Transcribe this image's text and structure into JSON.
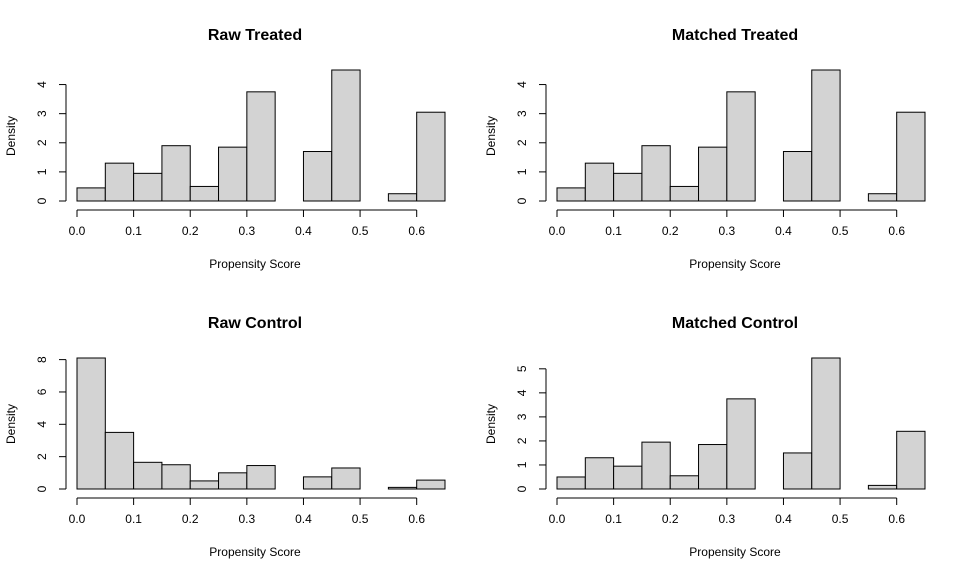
{
  "chart_data": [
    {
      "type": "bar",
      "title": "Raw Treated",
      "xlabel": "Propensity Score",
      "ylabel": "Density",
      "bin_edges": [
        0.0,
        0.05,
        0.1,
        0.15,
        0.2,
        0.25,
        0.3,
        0.35,
        0.4,
        0.45,
        0.5,
        0.55,
        0.6,
        0.65
      ],
      "values": [
        0.45,
        1.3,
        0.95,
        1.9,
        0.5,
        1.85,
        3.75,
        0.0,
        1.7,
        4.5,
        0.0,
        0.25,
        3.05
      ],
      "xticks": [
        0.0,
        0.1,
        0.2,
        0.3,
        0.4,
        0.5,
        0.6
      ],
      "xtick_labels": [
        "0.0",
        "0.1",
        "0.2",
        "0.3",
        "0.4",
        "0.5",
        "0.6"
      ],
      "yticks": [
        0,
        1,
        2,
        3,
        4
      ],
      "ytick_labels": [
        "0",
        "1",
        "2",
        "3",
        "4"
      ],
      "xlim": [
        0.0,
        0.65
      ],
      "ylim": [
        0,
        4.5
      ]
    },
    {
      "type": "bar",
      "title": "Matched Treated",
      "xlabel": "Propensity Score",
      "ylabel": "Density",
      "bin_edges": [
        0.0,
        0.05,
        0.1,
        0.15,
        0.2,
        0.25,
        0.3,
        0.35,
        0.4,
        0.45,
        0.5,
        0.55,
        0.6,
        0.65
      ],
      "values": [
        0.45,
        1.3,
        0.95,
        1.9,
        0.5,
        1.85,
        3.75,
        0.0,
        1.7,
        4.5,
        0.0,
        0.25,
        3.05
      ],
      "xticks": [
        0.0,
        0.1,
        0.2,
        0.3,
        0.4,
        0.5,
        0.6
      ],
      "xtick_labels": [
        "0.0",
        "0.1",
        "0.2",
        "0.3",
        "0.4",
        "0.5",
        "0.6"
      ],
      "yticks": [
        0,
        1,
        2,
        3,
        4
      ],
      "ytick_labels": [
        "0",
        "1",
        "2",
        "3",
        "4"
      ],
      "xlim": [
        0.0,
        0.65
      ],
      "ylim": [
        0,
        4.5
      ]
    },
    {
      "type": "bar",
      "title": "Raw Control",
      "xlabel": "Propensity Score",
      "ylabel": "Density",
      "bin_edges": [
        0.0,
        0.05,
        0.1,
        0.15,
        0.2,
        0.25,
        0.3,
        0.35,
        0.4,
        0.45,
        0.5,
        0.55,
        0.6,
        0.65
      ],
      "values": [
        8.1,
        3.5,
        1.65,
        1.5,
        0.5,
        1.0,
        1.45,
        0.0,
        0.75,
        1.3,
        0.0,
        0.1,
        0.55
      ],
      "xticks": [
        0.0,
        0.1,
        0.2,
        0.3,
        0.4,
        0.5,
        0.6
      ],
      "xtick_labels": [
        "0.0",
        "0.1",
        "0.2",
        "0.3",
        "0.4",
        "0.5",
        "0.6"
      ],
      "yticks": [
        0,
        2,
        4,
        6,
        8
      ],
      "ytick_labels": [
        "0",
        "2",
        "4",
        "6",
        "8"
      ],
      "xlim": [
        0.0,
        0.65
      ],
      "ylim": [
        0,
        8.1
      ]
    },
    {
      "type": "bar",
      "title": "Matched Control",
      "xlabel": "Propensity Score",
      "ylabel": "Density",
      "bin_edges": [
        0.0,
        0.05,
        0.1,
        0.15,
        0.2,
        0.25,
        0.3,
        0.35,
        0.4,
        0.45,
        0.5,
        0.55,
        0.6,
        0.65
      ],
      "values": [
        0.5,
        1.3,
        0.95,
        1.95,
        0.55,
        1.85,
        3.75,
        0.0,
        1.5,
        5.45,
        0.0,
        0.15,
        2.4
      ],
      "xticks": [
        0.0,
        0.1,
        0.2,
        0.3,
        0.4,
        0.5,
        0.6
      ],
      "xtick_labels": [
        "0.0",
        "0.1",
        "0.2",
        "0.3",
        "0.4",
        "0.5",
        "0.6"
      ],
      "yticks": [
        0,
        1,
        2,
        3,
        4,
        5
      ],
      "ytick_labels": [
        "0",
        "1",
        "2",
        "3",
        "4",
        "5"
      ],
      "xlim": [
        0.0,
        0.65
      ],
      "ylim": [
        0,
        5.45
      ]
    }
  ]
}
